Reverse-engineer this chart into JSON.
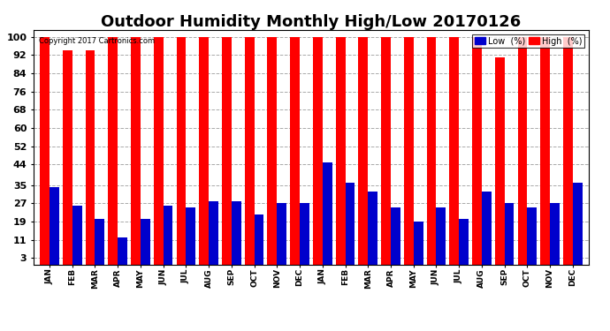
{
  "title": "Outdoor Humidity Monthly High/Low 20170126",
  "copyright": "Copyright 2017 Cartronics.com",
  "months": [
    "JAN",
    "FEB",
    "MAR",
    "APR",
    "MAY",
    "JUN",
    "JUL",
    "AUG",
    "SEP",
    "OCT",
    "NOV",
    "DEC",
    "JAN",
    "FEB",
    "MAR",
    "APR",
    "MAY",
    "JUN",
    "JUL",
    "AUG",
    "SEP",
    "OCT",
    "NOV",
    "DEC"
  ],
  "high_values": [
    100,
    94,
    94,
    100,
    100,
    100,
    100,
    100,
    100,
    100,
    100,
    100,
    100,
    100,
    100,
    100,
    100,
    100,
    100,
    100,
    91,
    100,
    100,
    100
  ],
  "low_values": [
    34,
    26,
    20,
    12,
    20,
    26,
    25,
    28,
    28,
    22,
    27,
    27,
    45,
    36,
    32,
    25,
    19,
    25,
    20,
    32,
    27,
    25,
    27,
    36
  ],
  "high_color": "#ff0000",
  "low_color": "#0000cc",
  "bg_color": "#ffffff",
  "plot_bg_color": "#ffffff",
  "grid_color": "#aaaaaa",
  "yticks": [
    3,
    11,
    19,
    27,
    35,
    44,
    52,
    60,
    68,
    76,
    84,
    92,
    100
  ],
  "ylim_min": 0,
  "ylim_max": 103,
  "title_fontsize": 13,
  "legend_low_label": "Low  (%)",
  "legend_high_label": "High  (%)",
  "bar_width": 0.42
}
